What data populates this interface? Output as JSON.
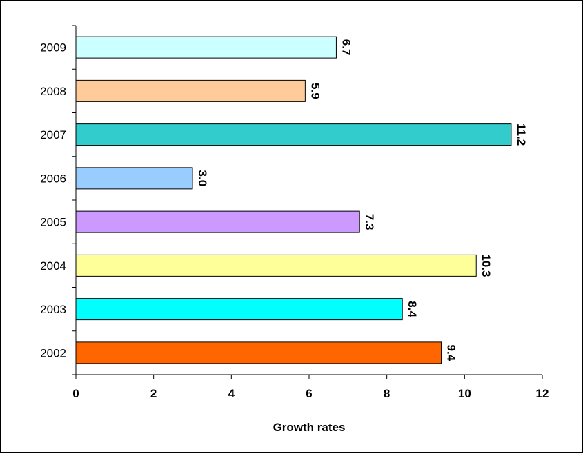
{
  "chart_data": {
    "type": "bar",
    "orientation": "horizontal",
    "categories": [
      "2009",
      "2008",
      "2007",
      "2006",
      "2005",
      "2004",
      "2003",
      "2002"
    ],
    "values": [
      6.7,
      5.9,
      11.2,
      3.0,
      7.3,
      10.3,
      8.4,
      9.4
    ],
    "value_labels": [
      "6.7",
      "5.9",
      "11.2",
      "3.0",
      "7.3",
      "10.3",
      "8.4",
      "9.4"
    ],
    "bar_colors": [
      "#ccffff",
      "#ffcc99",
      "#33cccc",
      "#99ccff",
      "#cc99ff",
      "#ffff99",
      "#00ffff",
      "#ff6600"
    ],
    "xlabel": "Growth rates",
    "ylabel": "",
    "xlim": [
      0,
      12
    ],
    "x_ticks": [
      "0",
      "2",
      "4",
      "6",
      "8",
      "10",
      "12"
    ],
    "grid": false,
    "legend": "none"
  }
}
